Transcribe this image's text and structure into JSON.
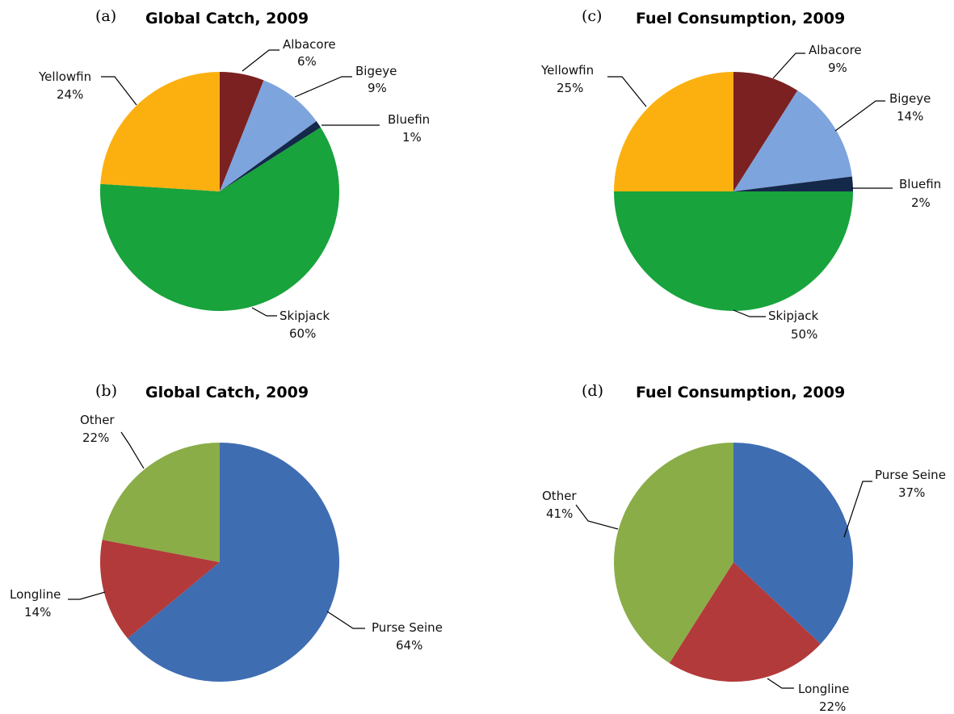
{
  "chart_data": [
    {
      "type": "pie",
      "panel_label": "(a)",
      "title": "Global Catch, 2009",
      "start_angle": 0,
      "direction": "clockwise",
      "slices": [
        {
          "label": "Albacore",
          "value": 6,
          "value_label": "6%",
          "color": "#7b2121"
        },
        {
          "label": "Bigeye",
          "value": 9,
          "value_label": "9%",
          "color": "#7ea4dd"
        },
        {
          "label": "Bluefin",
          "value": 1,
          "value_label": "1%",
          "color": "#14284a"
        },
        {
          "label": "Skipjack",
          "value": 60,
          "value_label": "60%",
          "color": "#18a33c"
        },
        {
          "label": "Yellowfin",
          "value": 24,
          "value_label": "24%",
          "color": "#fcb010"
        }
      ]
    },
    {
      "type": "pie",
      "panel_label": "(b)",
      "title": "Global Catch, 2009",
      "start_angle": 0,
      "direction": "clockwise",
      "slices": [
        {
          "label": "Purse Seine",
          "value": 64,
          "value_label": "64%",
          "color": "#3e6db2"
        },
        {
          "label": "Longline",
          "value": 14,
          "value_label": "14%",
          "color": "#b33a3a"
        },
        {
          "label": "Other",
          "value": 22,
          "value_label": "22%",
          "color": "#8aad48"
        }
      ]
    },
    {
      "type": "pie",
      "panel_label": "(c)",
      "title": "Fuel Consumption, 2009",
      "start_angle": 0,
      "direction": "clockwise",
      "slices": [
        {
          "label": "Albacore",
          "value": 9,
          "value_label": "9%",
          "color": "#7b2121"
        },
        {
          "label": "Bigeye",
          "value": 14,
          "value_label": "14%",
          "color": "#7ea4dd"
        },
        {
          "label": "Bluefin",
          "value": 2,
          "value_label": "2%",
          "color": "#14284a"
        },
        {
          "label": "Skipjack",
          "value": 50,
          "value_label": "50%",
          "color": "#18a33c"
        },
        {
          "label": "Yellowfin",
          "value": 25,
          "value_label": "25%",
          "color": "#fcb010"
        }
      ]
    },
    {
      "type": "pie",
      "panel_label": "(d)",
      "title": "Fuel Consumption, 2009",
      "start_angle": 0,
      "direction": "clockwise",
      "slices": [
        {
          "label": "Purse Seine",
          "value": 37,
          "value_label": "37%",
          "color": "#3e6db2"
        },
        {
          "label": "Longline",
          "value": 22,
          "value_label": "22%",
          "color": "#b33a3a"
        },
        {
          "label": "Other",
          "value": 41,
          "value_label": "41%",
          "color": "#8aad48"
        }
      ]
    }
  ]
}
